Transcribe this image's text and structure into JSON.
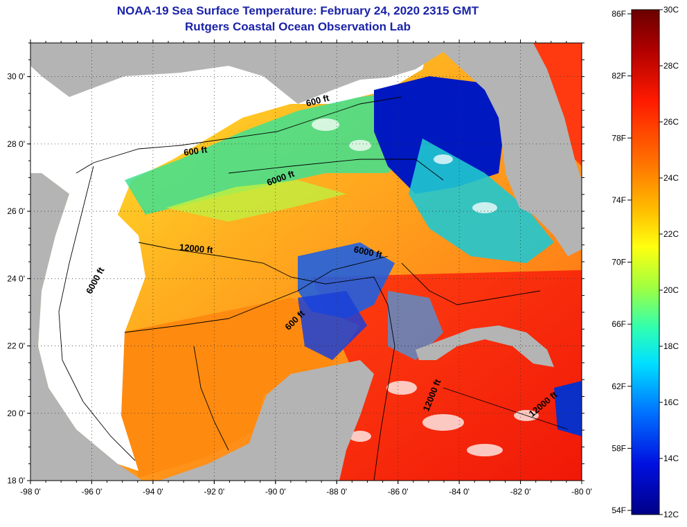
{
  "header": {
    "title": "NOAA-19 Sea Surface Temperature:  February 24, 2020 2315 GMT",
    "subtitle": "Rutgers Coastal Ocean Observation Lab"
  },
  "map": {
    "lon_range": [
      -98,
      -80
    ],
    "lat_range": [
      18,
      31
    ],
    "lon_ticks": [
      "-98 0'",
      "-96 0'",
      "-94 0'",
      "-92 0'",
      "-90 0'",
      "-88 0'",
      "-86 0'",
      "-84 0'",
      "-82 0'",
      "-80 0'"
    ],
    "lat_ticks": [
      "18 0'",
      "20 0'",
      "22 0'",
      "24 0'",
      "26 0'",
      "28 0'",
      "30 0'"
    ],
    "grid": "dotted",
    "colors": {
      "land": "#b4b4b4",
      "cloud": "#ffffff",
      "contour": "#000000"
    },
    "contour_labels": [
      {
        "text": "600 ft",
        "lon": -92.6,
        "lat": 27.7,
        "rotate": -8
      },
      {
        "text": "600 ft",
        "lon": -88.6,
        "lat": 29.2,
        "rotate": -15
      },
      {
        "text": "6000 ft",
        "lon": -89.8,
        "lat": 26.9,
        "rotate": -20
      },
      {
        "text": "12000 ft",
        "lon": -92.6,
        "lat": 24.8,
        "rotate": 5
      },
      {
        "text": "6000 ft",
        "lon": -87.0,
        "lat": 24.7,
        "rotate": 12
      },
      {
        "text": "600 ft",
        "lon": -89.3,
        "lat": 22.7,
        "rotate": -45
      },
      {
        "text": "6000 ft",
        "lon": -95.8,
        "lat": 23.9,
        "rotate": -62
      },
      {
        "text": "12000 ft",
        "lon": -84.8,
        "lat": 20.5,
        "rotate": -68
      },
      {
        "text": "12000 ft",
        "lon": -81.2,
        "lat": 20.2,
        "rotate": -40
      }
    ]
  },
  "colorbar": {
    "f_labels": [
      "86F",
      "82F",
      "78F",
      "74F",
      "70F",
      "66F",
      "62F",
      "58F",
      "54F"
    ],
    "c_labels": [
      "30C",
      "28C",
      "26C",
      "24C",
      "22C",
      "20C",
      "18C",
      "16C",
      "14C",
      "12C"
    ],
    "stops": [
      "#7a0000",
      "#c40000",
      "#ff2000",
      "#ff7000",
      "#ffc000",
      "#ffff20",
      "#a0ff40",
      "#30ffc0",
      "#00d0ff",
      "#0060ff",
      "#0010e0",
      "#000090"
    ]
  }
}
